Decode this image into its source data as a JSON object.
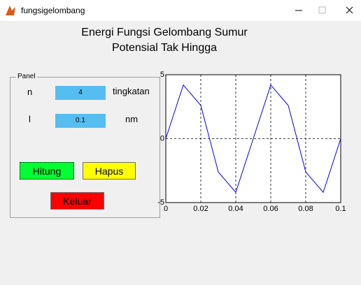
{
  "window": {
    "title": "fungsigelombang"
  },
  "header": {
    "lines": [
      "Energi Fungsi Gelombang Sumur",
      "Potensial Tak Hingga"
    ]
  },
  "panel": {
    "title": "Panel",
    "fields": [
      {
        "label": "n",
        "value": "4",
        "unit": "tingkatan"
      },
      {
        "label": "l",
        "value": "0.1",
        "unit": "nm"
      }
    ],
    "buttons": [
      "Hitung",
      "Hapus",
      "Keluar"
    ]
  },
  "chart_data": {
    "type": "line",
    "x": [
      0,
      0.01,
      0.02,
      0.03,
      0.04,
      0.05,
      0.06,
      0.07,
      0.08,
      0.09,
      0.1
    ],
    "values": [
      0,
      4.2,
      2.6,
      -2.6,
      -4.2,
      0,
      4.2,
      2.6,
      -2.6,
      -4.2,
      0
    ],
    "color": "#0000ff",
    "xlim": [
      0,
      0.1
    ],
    "ylim": [
      -5,
      5
    ],
    "xticks": [
      0,
      0.02,
      0.04,
      0.06,
      0.08,
      0.1
    ],
    "yticks": [
      -5,
      0,
      5
    ],
    "grid": true
  }
}
